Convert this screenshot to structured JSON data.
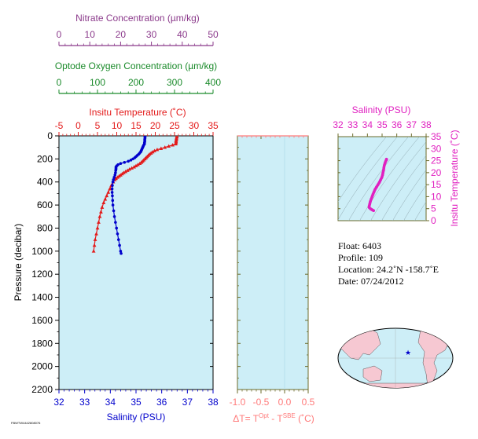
{
  "chart_data": {
    "type": "line",
    "main": {
      "ylabel": "Pressure (decibar)",
      "ylim": [
        0,
        2200
      ],
      "yticks": [
        0,
        200,
        400,
        600,
        800,
        1000,
        1200,
        1400,
        1600,
        1800,
        2000,
        2200
      ],
      "axes": {
        "nitrate": {
          "title": "Nitrate Concentration (µm/kg)",
          "lim": [
            0,
            50
          ],
          "ticks": [
            0,
            10,
            20,
            30,
            40,
            50
          ],
          "color": "#8b3a8b"
        },
        "oxygen": {
          "title": "Optode Oxygen Concentration (µm/kg)",
          "lim": [
            0,
            400
          ],
          "ticks": [
            0,
            100,
            200,
            300,
            400
          ],
          "color": "#1a8a2a"
        },
        "temperature": {
          "title": "Insitu Temperature (˚C)",
          "lim": [
            -5,
            35
          ],
          "ticks": [
            -5,
            0,
            5,
            10,
            15,
            20,
            25,
            30,
            35
          ],
          "color": "#e31a1a"
        },
        "salinity": {
          "title": "Salinity (PSU)",
          "lim": [
            32,
            38
          ],
          "ticks": [
            32,
            33,
            34,
            35,
            36,
            37,
            38
          ],
          "color": "#0000cc"
        }
      },
      "series": [
        {
          "name": "Temperature",
          "color": "#e31a1a",
          "marker": "triangle",
          "points": [
            [
              25.6,
              5
            ],
            [
              25.6,
              10
            ],
            [
              25.5,
              20
            ],
            [
              25.5,
              30
            ],
            [
              25.4,
              40
            ],
            [
              25.4,
              50
            ],
            [
              25.4,
              60
            ],
            [
              25.3,
              70
            ],
            [
              24.5,
              80
            ],
            [
              23.5,
              90
            ],
            [
              22.5,
              100
            ],
            [
              21.5,
              110
            ],
            [
              20.5,
              120
            ],
            [
              19.8,
              130
            ],
            [
              19.3,
              140
            ],
            [
              18.9,
              150
            ],
            [
              18.5,
              160
            ],
            [
              18.2,
              170
            ],
            [
              17.9,
              180
            ],
            [
              17.6,
              190
            ],
            [
              17.3,
              200
            ],
            [
              17.0,
              210
            ],
            [
              16.7,
              220
            ],
            [
              16.4,
              230
            ],
            [
              16.0,
              240
            ],
            [
              15.5,
              250
            ],
            [
              15.0,
              260
            ],
            [
              14.5,
              270
            ],
            [
              13.9,
              280
            ],
            [
              13.3,
              290
            ],
            [
              12.8,
              300
            ],
            [
              12.3,
              310
            ],
            [
              11.8,
              320
            ],
            [
              11.4,
              330
            ],
            [
              11.0,
              340
            ],
            [
              10.6,
              350
            ],
            [
              10.2,
              360
            ],
            [
              9.8,
              370
            ],
            [
              9.5,
              380
            ],
            [
              9.1,
              400
            ],
            [
              8.6,
              430
            ],
            [
              8.2,
              460
            ],
            [
              7.8,
              490
            ],
            [
              7.4,
              520
            ],
            [
              7.0,
              550
            ],
            [
              6.6,
              580
            ],
            [
              6.2,
              620
            ],
            [
              5.9,
              660
            ],
            [
              5.6,
              700
            ],
            [
              5.3,
              750
            ],
            [
              5.0,
              800
            ],
            [
              4.7,
              850
            ],
            [
              4.4,
              900
            ],
            [
              4.2,
              950
            ],
            [
              4.0,
              1000
            ]
          ]
        },
        {
          "name": "Salinity",
          "color": "#0000cc",
          "marker": "circle",
          "points": [
            [
              35.35,
              5
            ],
            [
              35.35,
              10
            ],
            [
              35.35,
              20
            ],
            [
              35.34,
              30
            ],
            [
              35.34,
              40
            ],
            [
              35.34,
              50
            ],
            [
              35.33,
              60
            ],
            [
              35.33,
              70
            ],
            [
              35.3,
              80
            ],
            [
              35.28,
              90
            ],
            [
              35.26,
              100
            ],
            [
              35.24,
              110
            ],
            [
              35.22,
              120
            ],
            [
              35.2,
              130
            ],
            [
              35.18,
              140
            ],
            [
              35.14,
              150
            ],
            [
              35.1,
              160
            ],
            [
              35.05,
              170
            ],
            [
              35.0,
              180
            ],
            [
              34.95,
              190
            ],
            [
              34.88,
              200
            ],
            [
              34.8,
              210
            ],
            [
              34.7,
              220
            ],
            [
              34.55,
              230
            ],
            [
              34.4,
              240
            ],
            [
              34.3,
              250
            ],
            [
              34.25,
              260
            ],
            [
              34.22,
              270
            ],
            [
              34.22,
              280
            ],
            [
              34.22,
              290
            ],
            [
              34.21,
              300
            ],
            [
              34.2,
              320
            ],
            [
              34.18,
              340
            ],
            [
              34.15,
              360
            ],
            [
              34.12,
              380
            ],
            [
              34.1,
              400
            ],
            [
              34.08,
              430
            ],
            [
              34.07,
              460
            ],
            [
              34.07,
              490
            ],
            [
              34.08,
              520
            ],
            [
              34.09,
              560
            ],
            [
              34.1,
              600
            ],
            [
              34.13,
              650
            ],
            [
              34.16,
              700
            ],
            [
              34.2,
              750
            ],
            [
              34.24,
              800
            ],
            [
              34.28,
              850
            ],
            [
              34.32,
              900
            ],
            [
              34.36,
              950
            ],
            [
              34.4,
              1000
            ],
            [
              34.42,
              1020
            ]
          ]
        }
      ]
    },
    "delta": {
      "xlabel_parts": [
        "ΔT= T",
        "Opt",
        " - T",
        "SBE",
        " (˚C)"
      ],
      "xlim": [
        -1.0,
        0.5
      ],
      "xticks": [
        "-1.0",
        "-0.5",
        "0.0",
        "0.5"
      ],
      "ylim": [
        0,
        2200
      ],
      "color": "#ff7a7a"
    },
    "ts": {
      "type": "scatter",
      "title": "Salinity (PSU)",
      "xlim": [
        32,
        38
      ],
      "xticks": [
        32,
        33,
        34,
        35,
        36,
        37,
        38
      ],
      "ylabel": "Insitu Temperature (˚C)",
      "ylim": [
        0,
        35
      ],
      "yticks": [
        0,
        5,
        10,
        15,
        20,
        25,
        30,
        35
      ],
      "color": "#e020c0",
      "points": [
        [
          35.3,
          25.6
        ],
        [
          35.3,
          25.4
        ],
        [
          35.25,
          24.8
        ],
        [
          35.2,
          24
        ],
        [
          35.15,
          23
        ],
        [
          35.12,
          22
        ],
        [
          35.1,
          21
        ],
        [
          35.06,
          20
        ],
        [
          35.03,
          19
        ],
        [
          34.98,
          18
        ],
        [
          34.9,
          17
        ],
        [
          34.82,
          16
        ],
        [
          34.72,
          15
        ],
        [
          34.62,
          14
        ],
        [
          34.52,
          13
        ],
        [
          34.45,
          12
        ],
        [
          34.38,
          11
        ],
        [
          34.32,
          10
        ],
        [
          34.26,
          9
        ],
        [
          34.2,
          8
        ],
        [
          34.16,
          7
        ],
        [
          34.12,
          6
        ],
        [
          34.12,
          5.5
        ],
        [
          34.2,
          5
        ],
        [
          34.3,
          4.6
        ],
        [
          34.42,
          4.2
        ]
      ]
    },
    "info": {
      "float": "Float:  6403",
      "profile": "Profile:  109",
      "location": "Location:  24.2˚N  -158.7˚E",
      "date": "Date:  07/24/2012"
    },
    "map": {
      "marker_lat": 24.2,
      "marker_lon": -158.7,
      "marker_symbol": "★"
    },
    "colors": {
      "panel_bg": "#cdeef7",
      "land": "#f6c8d2",
      "ocean": "#cdeef7"
    },
    "footnote": "FBWTW4442808076"
  }
}
